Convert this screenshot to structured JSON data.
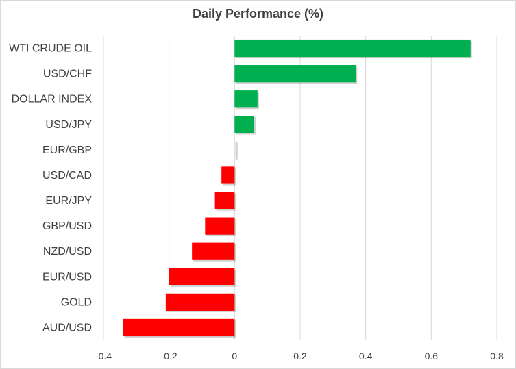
{
  "chart_data": {
    "type": "bar",
    "orientation": "horizontal",
    "title": "Daily Performance (%)",
    "categories": [
      "WTI CRUDE OIL",
      "USD/CHF",
      "DOLLAR INDEX",
      "USD/JPY",
      "EUR/GBP",
      "USD/CAD",
      "EUR/JPY",
      "GBP/USD",
      "NZD/USD",
      "EUR/USD",
      "GOLD",
      "AUD/USD"
    ],
    "values": [
      0.72,
      0.37,
      0.07,
      0.06,
      0.005,
      -0.04,
      -0.06,
      -0.09,
      -0.13,
      -0.2,
      -0.21,
      -0.34
    ],
    "xlim": [
      -0.4,
      0.8
    ],
    "xticks": [
      "-0.4",
      "-0.2",
      "0",
      "0.2",
      "0.4",
      "0.6",
      "0.8"
    ],
    "grid": "vertical",
    "colors": {
      "positive": "#00b050",
      "negative": "#ff0000",
      "grid": "#d9d9d9"
    }
  }
}
